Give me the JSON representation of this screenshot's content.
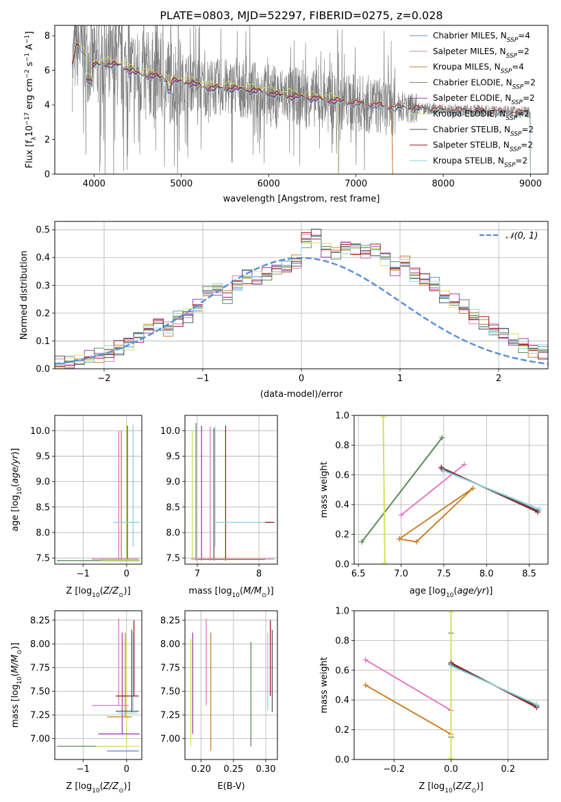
{
  "figure_title": "PLATE=0803, MJD=52297, FIBERID=0275, z=0.028",
  "colors": {
    "chabrier_miles": "#5b8fd6",
    "salpeter_miles": "#e377c2",
    "kroupa_miles": "#c8822a",
    "chabrier_elodie": "#5a8a5a",
    "salpeter_elodie": "#9a3fb0",
    "kroupa_elodie": "#d4e05a",
    "chabrier_stelib": "#555555",
    "salpeter_stelib": "#a01818",
    "kroupa_stelib": "#8fd0dc",
    "data": "#808080",
    "normal": "#5b8fd6"
  },
  "chart_data": [
    {
      "id": "spectrum",
      "type": "line",
      "title": "PLATE=0803, MJD=52297, FIBERID=0275, z=0.028",
      "xlabel": "wavelength [Angstrom, rest frame]",
      "ylabel": "Flux [fλ 10⁻¹⁷ erg cm⁻² s⁻¹ A⁻¹]",
      "xlim": [
        3550,
        9200
      ],
      "ylim": [
        0,
        8.6
      ],
      "xticks": [
        "4000",
        "5000",
        "6000",
        "7000",
        "8000",
        "9000"
      ],
      "yticks": [
        "0",
        "2",
        "4",
        "6",
        "8"
      ],
      "legend_position": "top-right",
      "legend": [
        "Chabrier MILES, NSSP=4",
        "Salpeter MILES, NSSP=2",
        "Kroupa MILES, NSSP=4",
        "Chabrier ELODIE, NSSP=2",
        "Salpeter ELODIE, NSSP=2",
        "Kroupa ELODIE, NSSP=2",
        "Chabrier STELIB, NSSP=2",
        "Salpeter STELIB, NSSP=2",
        "Kroupa STELIB, NSSP=2"
      ],
      "data_range": [
        3750,
        9000
      ],
      "model_continuum": {
        "x": [
          3750,
          3800,
          3900,
          4000,
          4100,
          4300,
          4500,
          4700,
          4900,
          5100,
          5300,
          5500,
          5700,
          5900,
          6100,
          6300,
          6500,
          6700,
          7000,
          7200,
          7400,
          7600,
          7800,
          8000,
          8200,
          8500,
          8800,
          9000
        ],
        "y": [
          6.2,
          7.5,
          6.9,
          6.3,
          6.4,
          6.3,
          5.8,
          5.7,
          5.4,
          5.3,
          5.0,
          5.0,
          4.9,
          4.8,
          4.6,
          4.5,
          4.4,
          4.3,
          4.1,
          4.0,
          3.9,
          3.85,
          3.8,
          3.75,
          3.7,
          3.65,
          3.6,
          3.55
        ]
      },
      "model_extents": {
        "miles": [
          3750,
          7420
        ],
        "elodie": [
          3750,
          6800
        ],
        "stelib": [
          3750,
          9000
        ]
      }
    },
    {
      "id": "residuals",
      "type": "line",
      "xlabel": "(data-model)/error",
      "ylabel": "Normed distribution",
      "xlim": [
        -2.5,
        2.5
      ],
      "ylim": [
        0,
        0.53
      ],
      "xticks": [
        "-2",
        "-1",
        "0",
        "1",
        "2"
      ],
      "yticks": [
        "0.0",
        "0.1",
        "0.2",
        "0.3",
        "0.4",
        "0.5"
      ],
      "legend_position": "top-right",
      "legend": [
        "𝒩(0, 1)"
      ],
      "bin_width": 0.1,
      "bin_start": -2.5,
      "histogram": [
        0.018,
        0.022,
        0.03,
        0.04,
        0.05,
        0.055,
        0.075,
        0.095,
        0.115,
        0.145,
        0.165,
        0.145,
        0.18,
        0.195,
        0.225,
        0.275,
        0.285,
        0.255,
        0.305,
        0.33,
        0.32,
        0.34,
        0.36,
        0.365,
        0.385,
        0.465,
        0.475,
        0.43,
        0.42,
        0.44,
        0.435,
        0.425,
        0.43,
        0.4,
        0.36,
        0.38,
        0.34,
        0.32,
        0.3,
        0.26,
        0.24,
        0.22,
        0.185,
        0.16,
        0.14,
        0.125,
        0.1,
        0.085,
        0.07,
        0.06,
        0.05
      ]
    },
    {
      "id": "age_vs_z",
      "type": "scatter",
      "xlabel": "Z [log10(Z/Z⊙)]",
      "ylabel": "age  [log10(age/yr)]",
      "xlim": [
        -1.65,
        0.35
      ],
      "ylim": [
        7.38,
        10.3
      ],
      "xticks": [
        "-1",
        "0"
      ],
      "yticks": [
        "7.5",
        "8.0",
        "8.5",
        "9.0",
        "9.5",
        "10.0"
      ],
      "vlines": [
        {
          "model": "salpeter_miles",
          "x": -0.18,
          "y0": 7.46,
          "y1": 10.0
        },
        {
          "model": "kroupa_miles",
          "x": -0.12,
          "y0": 7.46,
          "y1": 10.0
        },
        {
          "model": "kroupa_elodie",
          "x": 0.0,
          "y0": 7.45,
          "y1": 10.18
        },
        {
          "model": "chabrier_stelib",
          "x": 0.02,
          "y0": 7.45,
          "y1": 10.1
        },
        {
          "model": "kroupa_stelib",
          "x": 0.15,
          "y0": 7.72,
          "y1": 10.12
        }
      ],
      "hlines": [
        {
          "model": "kroupa_stelib",
          "y": 8.2,
          "x0": -0.3,
          "x1": 0.3
        },
        {
          "model": "salpeter_miles",
          "y": 7.48,
          "x0": -0.8,
          "x1": 0.28
        },
        {
          "model": "chabrier_elodie",
          "y": 7.45,
          "x0": -1.6,
          "x1": 0.3
        },
        {
          "model": "kroupa_elodie",
          "y": 7.46,
          "x0": -0.6,
          "x1": 0.3
        }
      ]
    },
    {
      "id": "age_vs_mass",
      "type": "scatter",
      "xlabel": "mass [log10(M/M⊙)]",
      "ylabel": "",
      "xlim": [
        6.8,
        8.3
      ],
      "ylim": [
        7.38,
        10.3
      ],
      "xticks": [
        "7",
        "8"
      ],
      "yticks": [
        "7.5",
        "8.0",
        "8.5",
        "9.0",
        "9.5",
        "10.0"
      ],
      "vlines": [
        {
          "model": "kroupa_elodie",
          "x": 6.92,
          "y0": 7.45,
          "y1": 10.0
        },
        {
          "model": "chabrier_elodie",
          "x": 6.98,
          "y0": 7.45,
          "y1": 10.15
        },
        {
          "model": "salpeter_elodie",
          "x": 7.07,
          "y0": 7.45,
          "y1": 10.1
        },
        {
          "model": "salpeter_miles",
          "x": 7.21,
          "y0": 7.45,
          "y1": 10.08
        },
        {
          "model": "chabrier_stelib",
          "x": 7.27,
          "y0": 7.45,
          "y1": 10.05
        },
        {
          "model": "kroupa_stelib",
          "x": 7.29,
          "y0": 7.72,
          "y1": 10.08
        },
        {
          "model": "salpeter_stelib",
          "x": 7.46,
          "y0": 7.45,
          "y1": 10.1
        }
      ],
      "hlines": [
        {
          "model": "kroupa_stelib",
          "y": 8.2,
          "x0": 7.29,
          "x1": 8.2
        },
        {
          "model": "salpeter_stelib",
          "y": 8.2,
          "x0": 8.1,
          "x1": 8.25
        },
        {
          "model": "salpeter_miles",
          "y": 7.48,
          "x0": 6.9,
          "x1": 8.25
        },
        {
          "model": "kroupa_miles",
          "y": 7.47,
          "x0": 7.0,
          "x1": 8.1
        }
      ]
    },
    {
      "id": "mass_weight_vs_age",
      "type": "line",
      "xlabel": "age  [log10(age/yr)]",
      "ylabel": "mass weight",
      "xlim": [
        6.45,
        8.72
      ],
      "ylim": [
        0,
        1.0
      ],
      "xticks": [
        "6.5",
        "7.0",
        "7.5",
        "8.0",
        "8.5"
      ],
      "yticks": [
        "0.0",
        "0.2",
        "0.4",
        "0.6",
        "0.8",
        "1.0"
      ],
      "series": [
        {
          "model": "chabrier_elodie",
          "x": [
            6.54,
            7.48
          ],
          "y": [
            0.15,
            0.85
          ]
        },
        {
          "model": "salpeter_miles",
          "x": [
            7.0,
            7.74
          ],
          "y": [
            0.33,
            0.67
          ]
        },
        {
          "model": "kroupa_miles",
          "x": [
            6.98,
            7.18,
            7.84,
            6.98
          ],
          "y": [
            0.17,
            0.15,
            0.51,
            0.17
          ]
        },
        {
          "model": "kroupa_elodie",
          "x": [
            6.79,
            6.81
          ],
          "y": [
            0.99,
            0.01
          ]
        },
        {
          "model": "salpeter_stelib",
          "x": [
            7.47,
            8.6
          ],
          "y": [
            0.65,
            0.35
          ]
        },
        {
          "model": "chabrier_stelib",
          "x": [
            7.48,
            8.6
          ],
          "y": [
            0.64,
            0.36
          ]
        },
        {
          "model": "kroupa_stelib",
          "x": [
            7.49,
            8.62
          ],
          "y": [
            0.63,
            0.37
          ]
        }
      ]
    },
    {
      "id": "mass_vs_z",
      "type": "scatter",
      "xlabel": "Z [log10(Z/Z⊙)]",
      "ylabel": "mass [log10(M/M⊙)]",
      "xlim": [
        -1.65,
        0.35
      ],
      "ylim": [
        6.78,
        8.35
      ],
      "xticks": [
        "-1",
        "0"
      ],
      "yticks": [
        "7.00",
        "7.25",
        "7.50",
        "7.75",
        "8.00",
        "8.25"
      ],
      "vlines": [
        {
          "model": "salpeter_miles",
          "x": -0.18,
          "y0": 7.35,
          "y1": 8.27
        },
        {
          "model": "salpeter_elodie",
          "x": -0.1,
          "y0": 7.05,
          "y1": 8.12
        },
        {
          "model": "kroupa_miles",
          "x": -0.03,
          "y0": 7.23,
          "y1": 8.12
        },
        {
          "model": "kroupa_elodie",
          "x": 0.0,
          "y0": 6.92,
          "y1": 8.05
        },
        {
          "model": "chabrier_stelib",
          "x": 0.12,
          "y0": 7.28,
          "y1": 8.15
        },
        {
          "model": "salpeter_stelib",
          "x": 0.17,
          "y0": 7.45,
          "y1": 8.25
        },
        {
          "model": "kroupa_stelib",
          "x": 0.15,
          "y0": 7.3,
          "y1": 8.12
        }
      ],
      "hlines": [
        {
          "model": "salpeter_stelib",
          "y": 7.45,
          "x0": -0.25,
          "x1": 0.28
        },
        {
          "model": "salpeter_miles",
          "y": 7.35,
          "x0": -0.8,
          "x1": 0.05
        },
        {
          "model": "chabrier_stelib",
          "y": 7.29,
          "x0": -0.25,
          "x1": 0.28
        },
        {
          "model": "kroupa_stelib",
          "y": 7.27,
          "x0": -0.2,
          "x1": 0.25
        },
        {
          "model": "kroupa_miles",
          "y": 7.23,
          "x0": -0.45,
          "x1": 0.12
        },
        {
          "model": "salpeter_elodie",
          "y": 7.05,
          "x0": -0.65,
          "x1": 0.3
        },
        {
          "model": "chabrier_elodie",
          "y": 6.92,
          "x0": -1.6,
          "x1": -0.05
        },
        {
          "model": "kroupa_elodie",
          "y": 6.92,
          "x0": -0.7,
          "x1": 0.3
        },
        {
          "model": "chabrier_miles",
          "y": 6.87,
          "x0": -0.45,
          "x1": 0.28
        }
      ]
    },
    {
      "id": "mass_vs_ebv",
      "type": "scatter",
      "xlabel": "E(B-V)",
      "ylabel": "",
      "xlim": [
        0.175,
        0.318
      ],
      "ylim": [
        6.78,
        8.35
      ],
      "xticks": [
        "0.20",
        "0.25",
        "0.30"
      ],
      "yticks": [
        "7.00",
        "7.25",
        "7.50",
        "7.75",
        "8.00",
        "8.25"
      ],
      "vlines": [
        {
          "model": "kroupa_elodie",
          "x": 0.184,
          "y0": 6.92,
          "y1": 8.05
        },
        {
          "model": "salpeter_elodie",
          "x": 0.187,
          "y0": 7.05,
          "y1": 8.12
        },
        {
          "model": "salpeter_miles",
          "x": 0.208,
          "y0": 7.35,
          "y1": 8.27
        },
        {
          "model": "kroupa_miles",
          "x": 0.215,
          "y0": 6.87,
          "y1": 8.12
        },
        {
          "model": "chabrier_elodie",
          "x": 0.277,
          "y0": 6.92,
          "y1": 8.02
        },
        {
          "model": "kroupa_stelib",
          "x": 0.303,
          "y0": 7.3,
          "y1": 8.12
        },
        {
          "model": "salpeter_stelib",
          "x": 0.307,
          "y0": 7.45,
          "y1": 8.25
        },
        {
          "model": "chabrier_stelib",
          "x": 0.31,
          "y0": 7.28,
          "y1": 8.15
        }
      ],
      "hlines": []
    },
    {
      "id": "mass_weight_vs_z",
      "type": "line",
      "xlabel": "Z [log10(Z/Z⊙)]",
      "ylabel": "mass weight",
      "xlim": [
        -0.34,
        0.34
      ],
      "ylim": [
        0,
        1.0
      ],
      "xticks": [
        "-0.2",
        "0.0",
        "0.2"
      ],
      "yticks": [
        "0.0",
        "0.2",
        "0.4",
        "0.6",
        "0.8",
        "1.0"
      ],
      "series": [
        {
          "model": "salpeter_miles",
          "x": [
            -0.3,
            0.0
          ],
          "y": [
            0.67,
            0.33
          ]
        },
        {
          "model": "kroupa_miles",
          "x": [
            -0.3,
            0.0,
            0.0
          ],
          "y": [
            0.5,
            0.17,
            0.15
          ]
        },
        {
          "model": "chabrier_elodie",
          "x": [
            0.0,
            0.0
          ],
          "y": [
            0.15,
            0.85
          ]
        },
        {
          "model": "kroupa_elodie",
          "x": [
            0.0,
            0.0
          ],
          "y": [
            0.99,
            0.01
          ]
        },
        {
          "model": "salpeter_stelib",
          "x": [
            0.0,
            0.3
          ],
          "y": [
            0.65,
            0.35
          ]
        },
        {
          "model": "chabrier_stelib",
          "x": [
            0.0,
            0.3
          ],
          "y": [
            0.64,
            0.36
          ]
        },
        {
          "model": "kroupa_stelib",
          "x": [
            0.0,
            0.3
          ],
          "y": [
            0.63,
            0.37
          ]
        }
      ]
    }
  ]
}
